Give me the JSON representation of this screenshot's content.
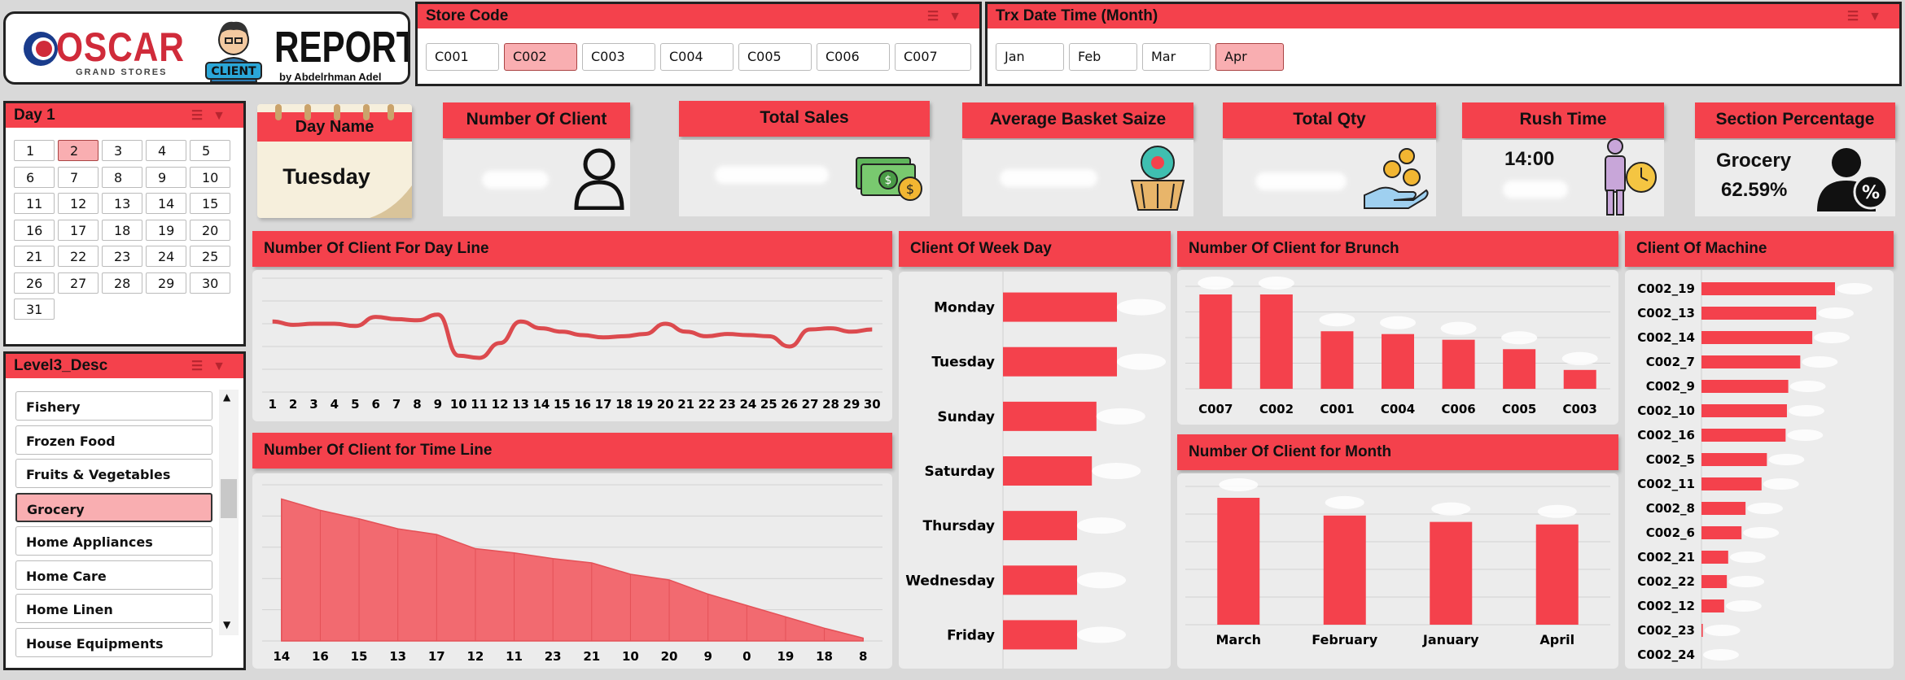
{
  "logo": {
    "oscar": "OSCAR",
    "grand_stores": "GRAND STORES",
    "client_badge": "CLIENT",
    "report": "REPORT",
    "author": "by Abdelrhman Adel"
  },
  "store_code": {
    "title": "Store Code",
    "options": [
      "C001",
      "C002",
      "C003",
      "C004",
      "C005",
      "C006",
      "C007"
    ],
    "selected": "C002"
  },
  "trx_month": {
    "title": "Trx Date Time (Month)",
    "options": [
      "Jan",
      "Feb",
      "Mar",
      "Apr"
    ],
    "selected": "Apr"
  },
  "day": {
    "title": "Day 1",
    "options": [
      "1",
      "2",
      "3",
      "4",
      "5",
      "6",
      "7",
      "8",
      "9",
      "10",
      "11",
      "12",
      "13",
      "14",
      "15",
      "16",
      "17",
      "18",
      "19",
      "20",
      "21",
      "22",
      "23",
      "24",
      "25",
      "26",
      "27",
      "28",
      "29",
      "30",
      "31"
    ],
    "selected": "2"
  },
  "level3": {
    "title": "Level3_Desc",
    "options": [
      "Fishery",
      "Frozen Food",
      "Fruits & Vegetables",
      "Grocery",
      "Home Appliances",
      "Home Care",
      "Home Linen",
      "House Equipments"
    ],
    "selected": "Grocery"
  },
  "kpis": {
    "day_name": {
      "title": "Day Name",
      "value": "Tuesday"
    },
    "number_of_client": {
      "title": "Number Of Client",
      "icon": "person-icon"
    },
    "total_sales": {
      "title": "Total Sales",
      "icon": "money-icon"
    },
    "avg_basket": {
      "title": "Average Basket Saize",
      "icon": "basket-icon"
    },
    "total_qty": {
      "title": "Total Qty",
      "icon": "coins-hand-icon"
    },
    "rush_time": {
      "title": "Rush Time",
      "value": "14:00",
      "icon": "clock-person-icon"
    },
    "section_pct": {
      "title": "Section Percentage",
      "section": "Grocery",
      "value": "62.59%",
      "icon": "user-percent-icon"
    }
  },
  "colors": {
    "accent": "#f4414c",
    "bar": "#f4414c",
    "panel": "#ececec",
    "selected": "#f9aeb1"
  },
  "panels": {
    "day_line": "Number Of Client For Day Line",
    "week_day": "Client Of Week Day",
    "brunch": "Number Of Client for Brunch",
    "machine": "Client Of Machine",
    "time_line": "Number Of Client for Time Line",
    "month": "Number Of Client for Month"
  },
  "chart_data": [
    {
      "type": "line",
      "name": "day_line",
      "x": [
        "1",
        "2",
        "3",
        "4",
        "5",
        "6",
        "7",
        "8",
        "9",
        "10",
        "11",
        "12",
        "13",
        "14",
        "15",
        "16",
        "17",
        "18",
        "19",
        "20",
        "21",
        "22",
        "23",
        "24",
        "25",
        "26",
        "27",
        "28",
        "29",
        "30"
      ],
      "values": [
        62,
        59,
        60,
        60,
        58,
        66,
        64,
        63,
        68,
        32,
        30,
        43,
        62,
        56,
        53,
        50,
        48,
        49,
        51,
        60,
        53,
        49,
        51,
        50,
        49,
        40,
        55,
        56,
        53,
        55
      ],
      "ylim": [
        0,
        100
      ],
      "grid": true
    },
    {
      "type": "area",
      "name": "time_line",
      "x": [
        "14",
        "16",
        "15",
        "13",
        "17",
        "12",
        "11",
        "23",
        "21",
        "10",
        "20",
        "9",
        "0",
        "19",
        "18",
        "8"
      ],
      "values": [
        100,
        92,
        86,
        79,
        75,
        65,
        62,
        58,
        55,
        47,
        43,
        33,
        25,
        17,
        9,
        2
      ],
      "ylim": [
        0,
        110
      ],
      "grid": true
    },
    {
      "type": "bar",
      "orientation": "horizontal",
      "name": "week_day",
      "categories": [
        "Monday",
        "Tuesday",
        "Sunday",
        "Saturday",
        "Thursday",
        "Wednesday",
        "Friday"
      ],
      "values": [
        100,
        100,
        82,
        78,
        65,
        65,
        65
      ]
    },
    {
      "type": "bar",
      "name": "brunch",
      "categories": [
        "C007",
        "C002",
        "C001",
        "C004",
        "C006",
        "C005",
        "C003"
      ],
      "values": [
        100,
        100,
        61,
        58,
        52,
        42,
        20
      ],
      "grid": true
    },
    {
      "type": "bar",
      "name": "month",
      "categories": [
        "March",
        "February",
        "January",
        "April"
      ],
      "values": [
        100,
        86,
        81,
        79
      ],
      "grid": true
    },
    {
      "type": "bar",
      "orientation": "horizontal",
      "name": "machine",
      "categories": [
        "C002_19",
        "C002_13",
        "C002_14",
        "C002_7",
        "C002_9",
        "C002_10",
        "C002_16",
        "C002_5",
        "C002_11",
        "C002_8",
        "C002_6",
        "C002_21",
        "C002_22",
        "C002_12",
        "C002_23",
        "C002_24"
      ],
      "values": [
        100,
        86,
        83,
        74,
        65,
        64,
        63,
        49,
        45,
        33,
        30,
        20,
        19,
        17,
        1,
        0
      ]
    }
  ]
}
